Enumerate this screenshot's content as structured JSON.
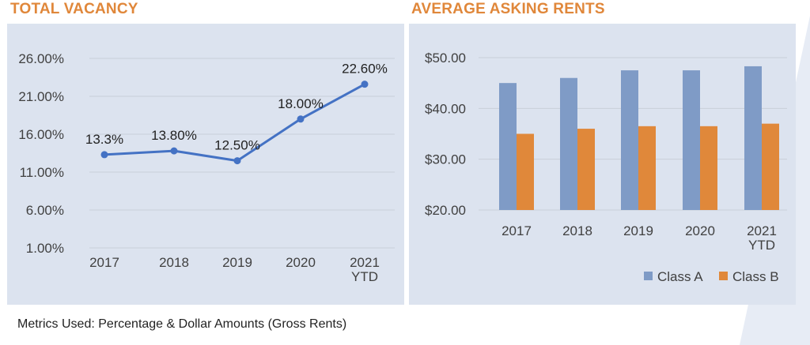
{
  "footnote": "Metrics Used: Percentage & Dollar Amounts (Gross Rents)",
  "colors": {
    "title": "#E0873A",
    "panel_bg": "#DCE3EF",
    "vacancy_line": "#4472C4",
    "class_a": "#7F9BC6",
    "class_b": "#E0883A",
    "axis_text": "#404040",
    "grid": "#C9CFDA"
  },
  "chart_data": [
    {
      "type": "line",
      "title": "TOTAL VACANCY",
      "categories": [
        "2017",
        "2018",
        "2019",
        "2020",
        "2021\nYTD"
      ],
      "series": [
        {
          "values": [
            13.3,
            13.8,
            12.5,
            18.0,
            22.6
          ]
        }
      ],
      "data_labels": [
        "13.3%",
        "13.80%",
        "12.50%",
        "18.00%",
        "22.60%"
      ],
      "y_ticks": [
        1,
        6,
        11,
        16,
        21,
        26
      ],
      "y_tick_labels": [
        "1.00%",
        "6.00%",
        "11.00%",
        "16.00%",
        "21.00%",
        "26.00%"
      ],
      "ylim": [
        1,
        26
      ],
      "grid": true,
      "legend": "none"
    },
    {
      "type": "bar",
      "title": "AVERAGE ASKING RENTS",
      "categories": [
        "2017",
        "2018",
        "2019",
        "2020",
        "2021\nYTD"
      ],
      "series": [
        {
          "name": "Class A",
          "values": [
            45.0,
            46.0,
            47.5,
            47.5,
            48.3
          ]
        },
        {
          "name": "Class B",
          "values": [
            35.0,
            36.0,
            36.5,
            36.5,
            37.0
          ]
        }
      ],
      "y_ticks": [
        20,
        30,
        40,
        50
      ],
      "y_tick_labels": [
        "$20.00",
        "$30.00",
        "$40.00",
        "$50.00"
      ],
      "ylim": [
        20,
        50
      ],
      "grid": true,
      "legend": "bottom-right"
    }
  ]
}
